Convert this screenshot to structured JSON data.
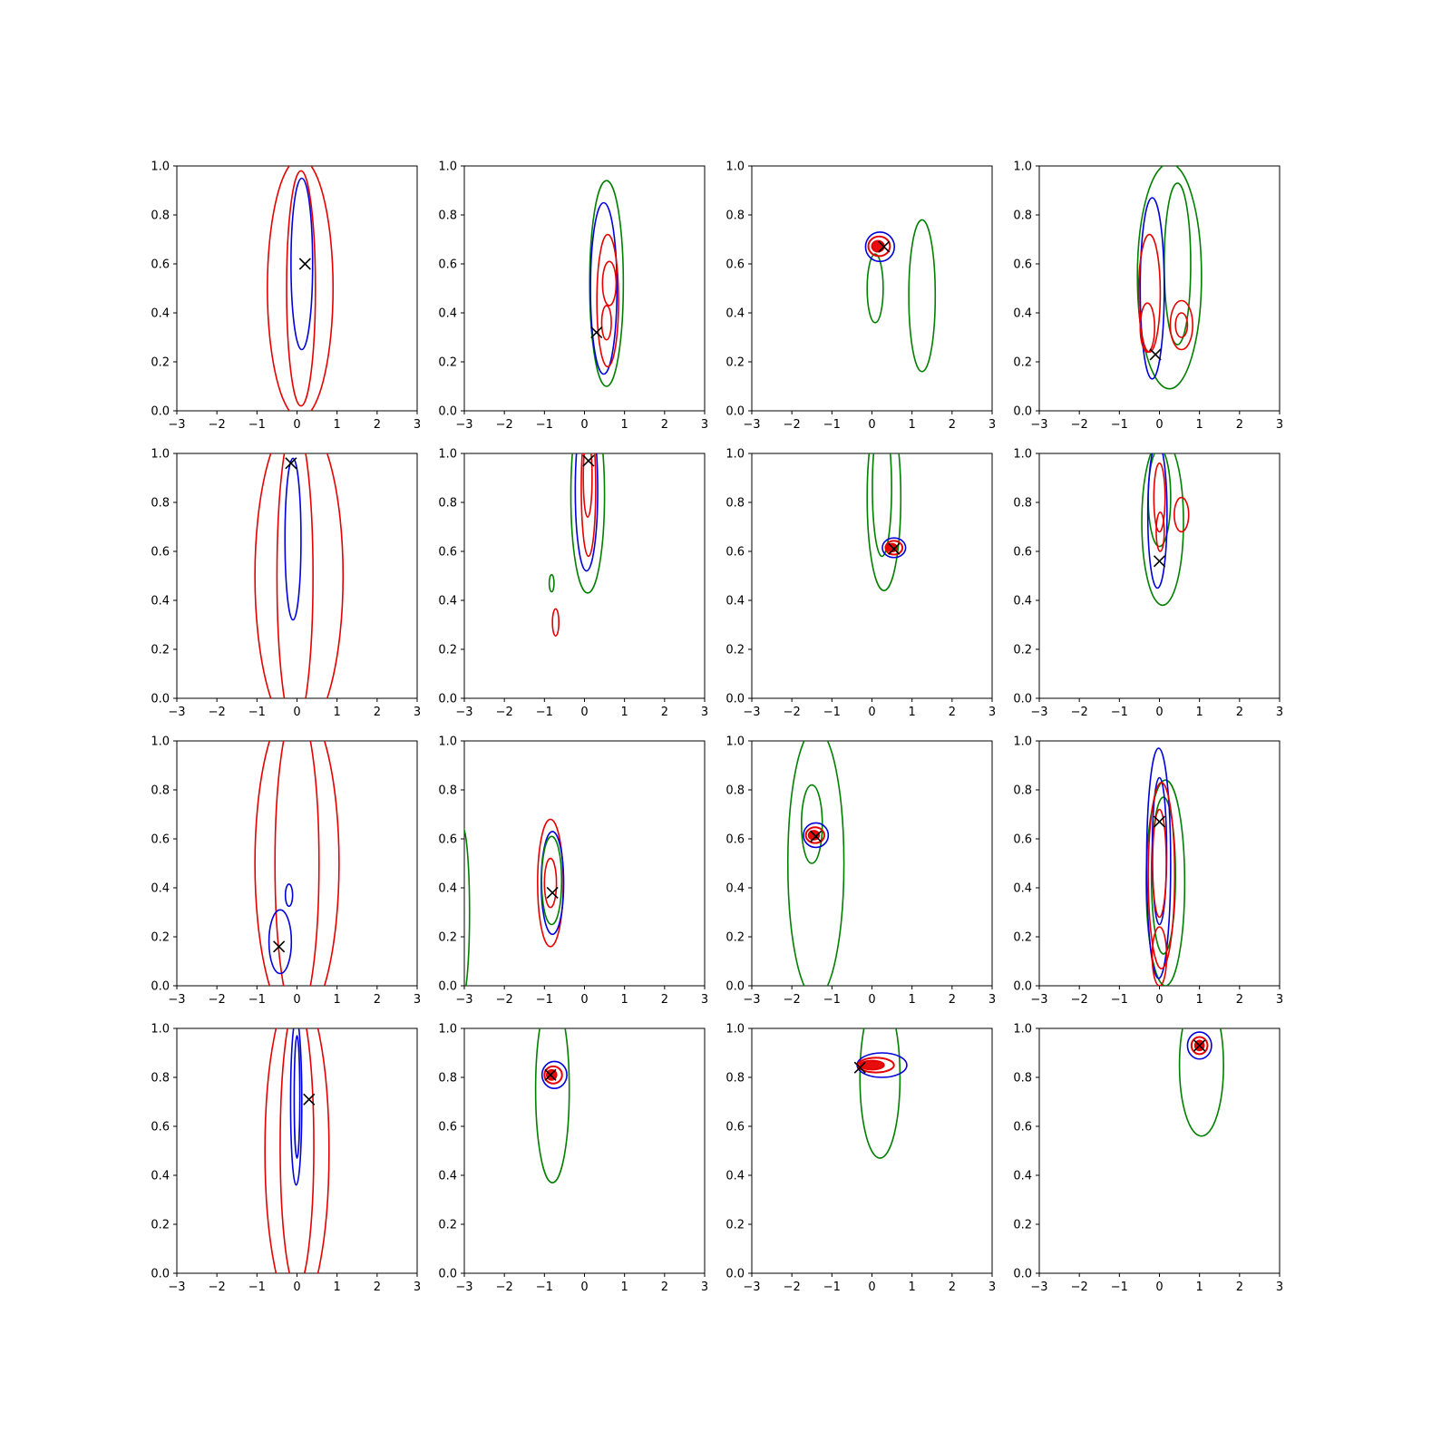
{
  "page": {
    "background": "#ffffff"
  },
  "chart_data": {
    "type": "contour",
    "title": "",
    "rows": 4,
    "cols": 4,
    "xlim": [
      -3,
      3
    ],
    "ylim": [
      0,
      1
    ],
    "xtick_labels": [
      "−3",
      "−2",
      "−1",
      "0",
      "1",
      "2",
      "3"
    ],
    "ytick_labels": [
      "0.0",
      "0.2",
      "0.4",
      "0.6",
      "0.8",
      "1.0"
    ],
    "grid": false,
    "legend": false,
    "colors": {
      "red": "#e60000",
      "green": "#008000",
      "blue": "#0000dd",
      "marker": "#000000",
      "axis": "#000000"
    },
    "subplots": [
      {
        "row": 0,
        "col": 0,
        "marker": [
          0.2,
          0.6
        ],
        "contours": [
          [
            "red",
            0.08,
            0.5,
            0.82,
            0.53
          ],
          [
            "red",
            0.1,
            0.5,
            0.36,
            0.48
          ],
          [
            "blue",
            0.12,
            0.6,
            0.27,
            0.35
          ]
        ]
      },
      {
        "row": 0,
        "col": 1,
        "marker": [
          0.3,
          0.32
        ],
        "contours": [
          [
            "green",
            0.55,
            0.52,
            0.42,
            0.42
          ],
          [
            "blue",
            0.48,
            0.5,
            0.33,
            0.35
          ],
          [
            "red",
            0.58,
            0.45,
            0.27,
            0.27
          ],
          [
            "red",
            0.62,
            0.52,
            0.17,
            0.09
          ],
          [
            "red",
            0.55,
            0.36,
            0.12,
            0.07
          ]
        ]
      },
      {
        "row": 0,
        "col": 2,
        "marker": [
          0.3,
          0.67
        ],
        "contours": [
          [
            "green",
            0.08,
            0.5,
            0.2,
            0.14
          ],
          [
            "green",
            1.25,
            0.47,
            0.33,
            0.31
          ],
          [
            "blue",
            0.2,
            0.67,
            0.36,
            0.06
          ],
          [
            "red",
            0.18,
            0.672,
            0.27,
            0.04,
            2
          ],
          [
            "red",
            0.15,
            0.672,
            0.15,
            0.022,
            2,
            1
          ]
        ]
      },
      {
        "row": 0,
        "col": 3,
        "marker": [
          -0.1,
          0.23
        ],
        "contours": [
          [
            "green",
            0.25,
            0.55,
            0.8,
            0.46
          ],
          [
            "green",
            0.45,
            0.6,
            0.33,
            0.33
          ],
          [
            "blue",
            -0.18,
            0.5,
            0.3,
            0.37
          ],
          [
            "red",
            -0.25,
            0.48,
            0.27,
            0.24
          ],
          [
            "red",
            -0.3,
            0.34,
            0.18,
            0.1
          ],
          [
            "red",
            0.55,
            0.35,
            0.28,
            0.1
          ],
          [
            "red",
            0.55,
            0.35,
            0.15,
            0.05
          ]
        ]
      },
      {
        "row": 1,
        "col": 0,
        "marker": [
          -0.15,
          0.96
        ],
        "contours": [
          [
            "red",
            0.05,
            0.5,
            1.1,
            0.65
          ],
          [
            "red",
            -0.05,
            0.5,
            0.45,
            0.62
          ],
          [
            "blue",
            -0.1,
            0.65,
            0.2,
            0.33
          ]
        ]
      },
      {
        "row": 1,
        "col": 1,
        "marker": [
          0.1,
          0.97
        ],
        "contours": [
          [
            "green",
            0.08,
            0.83,
            0.42,
            0.4
          ],
          [
            "blue",
            0.05,
            0.85,
            0.28,
            0.33
          ],
          [
            "red",
            0.1,
            0.86,
            0.18,
            0.28
          ],
          [
            "red",
            0.08,
            0.9,
            0.11,
            0.16
          ],
          [
            "green",
            -0.82,
            0.47,
            0.06,
            0.035
          ],
          [
            "red",
            -0.72,
            0.31,
            0.08,
            0.055
          ]
        ]
      },
      {
        "row": 1,
        "col": 2,
        "marker": [
          0.55,
          0.61
        ],
        "contours": [
          [
            "green",
            0.3,
            0.82,
            0.42,
            0.38
          ],
          [
            "green",
            0.25,
            0.86,
            0.24,
            0.28
          ],
          [
            "blue",
            0.55,
            0.615,
            0.29,
            0.04
          ],
          [
            "red",
            0.55,
            0.615,
            0.21,
            0.028,
            2
          ],
          [
            "red",
            0.5,
            0.615,
            0.12,
            0.016,
            2,
            1
          ]
        ]
      },
      {
        "row": 1,
        "col": 3,
        "marker": [
          0.0,
          0.56
        ],
        "contours": [
          [
            "green",
            0.08,
            0.72,
            0.52,
            0.34
          ],
          [
            "green",
            0.0,
            0.82,
            0.28,
            0.2
          ],
          [
            "blue",
            -0.05,
            0.75,
            0.24,
            0.3
          ],
          [
            "red",
            0.0,
            0.82,
            0.14,
            0.14
          ],
          [
            "red",
            0.02,
            0.68,
            0.1,
            0.08
          ],
          [
            "red",
            0.55,
            0.75,
            0.18,
            0.07
          ]
        ]
      },
      {
        "row": 2,
        "col": 0,
        "marker": [
          -0.45,
          0.16
        ],
        "contours": [
          [
            "red",
            0.0,
            0.5,
            1.05,
            0.66
          ],
          [
            "red",
            0.0,
            0.5,
            0.55,
            0.63
          ],
          [
            "blue",
            -0.42,
            0.18,
            0.28,
            0.13
          ],
          [
            "blue",
            -0.2,
            0.37,
            0.09,
            0.045
          ]
        ]
      },
      {
        "row": 2,
        "col": 1,
        "marker": [
          -0.8,
          0.38
        ],
        "contours": [
          [
            "green",
            -3.05,
            0.3,
            0.18,
            0.35
          ],
          [
            "red",
            -0.85,
            0.42,
            0.32,
            0.26
          ],
          [
            "blue",
            -0.8,
            0.42,
            0.28,
            0.21
          ],
          [
            "green",
            -0.82,
            0.43,
            0.25,
            0.18
          ],
          [
            "red",
            -0.85,
            0.42,
            0.15,
            0.1
          ]
        ]
      },
      {
        "row": 2,
        "col": 2,
        "marker": [
          -1.4,
          0.61
        ],
        "contours": [
          [
            "green",
            -1.4,
            0.5,
            0.7,
            0.55
          ],
          [
            "green",
            -1.5,
            0.66,
            0.26,
            0.16
          ],
          [
            "blue",
            -1.4,
            0.615,
            0.31,
            0.05
          ],
          [
            "red",
            -1.42,
            0.615,
            0.23,
            0.032,
            2
          ],
          [
            "red",
            -1.45,
            0.615,
            0.13,
            0.018,
            2,
            1
          ]
        ]
      },
      {
        "row": 2,
        "col": 3,
        "marker": [
          0.0,
          0.67
        ],
        "contours": [
          [
            "green",
            0.15,
            0.42,
            0.48,
            0.42
          ],
          [
            "green",
            0.1,
            0.45,
            0.3,
            0.32
          ],
          [
            "blue",
            -0.02,
            0.5,
            0.3,
            0.47
          ],
          [
            "blue",
            0.0,
            0.55,
            0.18,
            0.3
          ],
          [
            "red",
            0.05,
            0.45,
            0.33,
            0.38
          ],
          [
            "red",
            0.0,
            0.5,
            0.17,
            0.22
          ],
          [
            "red",
            0.0,
            0.12,
            0.18,
            0.12
          ]
        ]
      },
      {
        "row": 3,
        "col": 0,
        "marker": [
          0.3,
          0.71
        ],
        "contours": [
          [
            "red",
            0.0,
            0.5,
            0.8,
            0.66
          ],
          [
            "red",
            0.0,
            0.52,
            0.42,
            0.58
          ],
          [
            "blue",
            -0.02,
            0.7,
            0.14,
            0.34
          ],
          [
            "blue",
            0.0,
            0.72,
            0.07,
            0.25
          ]
        ]
      },
      {
        "row": 3,
        "col": 1,
        "marker": [
          -0.85,
          0.81
        ],
        "contours": [
          [
            "green",
            -0.8,
            0.75,
            0.42,
            0.38
          ],
          [
            "blue",
            -0.75,
            0.81,
            0.31,
            0.055
          ],
          [
            "red",
            -0.78,
            0.81,
            0.22,
            0.035,
            2
          ],
          [
            "red",
            -0.82,
            0.81,
            0.12,
            0.02,
            2,
            1
          ]
        ]
      },
      {
        "row": 3,
        "col": 2,
        "marker": [
          -0.3,
          0.84
        ],
        "contours": [
          [
            "green",
            0.2,
            0.8,
            0.5,
            0.33
          ],
          [
            "blue",
            0.25,
            0.85,
            0.62,
            0.05
          ],
          [
            "red",
            0.1,
            0.85,
            0.45,
            0.03,
            2
          ],
          [
            "red",
            0.0,
            0.85,
            0.3,
            0.018,
            2,
            1
          ]
        ]
      },
      {
        "row": 3,
        "col": 3,
        "marker": [
          1.0,
          0.93
        ],
        "contours": [
          [
            "green",
            1.05,
            0.85,
            0.55,
            0.29
          ],
          [
            "blue",
            1.0,
            0.93,
            0.3,
            0.055
          ],
          [
            "red",
            1.0,
            0.93,
            0.2,
            0.035,
            2
          ],
          [
            "red",
            1.0,
            0.93,
            0.11,
            0.02,
            2,
            1
          ]
        ]
      }
    ]
  }
}
